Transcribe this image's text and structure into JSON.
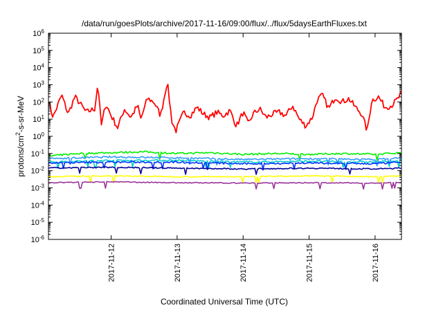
{
  "chart_data": {
    "type": "line",
    "title": "/data/run/goesPlots/archive/2017-11-16/09:00/flux/../flux/5daysEarthFluxes.txt",
    "xlabel": "Coordinated Universal Time (UTC)",
    "ylabel": "protons/cm²-s-sr-MeV",
    "ylabel_parts": {
      "before": "protons/cm",
      "sup": "2",
      "after": "-s-sr-MeV"
    },
    "y_scale": "log",
    "ylim_exp": [
      -6,
      6
    ],
    "y_ticks": [
      {
        "exp": -6,
        "base": "10",
        "sup": "-6"
      },
      {
        "exp": -5,
        "base": "10",
        "sup": "-5"
      },
      {
        "exp": -4,
        "base": "10",
        "sup": "-4"
      },
      {
        "exp": -3,
        "base": "10",
        "sup": "-3"
      },
      {
        "exp": -2,
        "base": "10",
        "sup": "-2"
      },
      {
        "exp": -1,
        "base": "10",
        "sup": "-1"
      },
      {
        "exp": 0,
        "base": "10",
        "sup": "0"
      },
      {
        "exp": 1,
        "base": "10",
        "sup": "1"
      },
      {
        "exp": 2,
        "base": "10",
        "sup": "2"
      },
      {
        "exp": 3,
        "base": "10",
        "sup": "3"
      },
      {
        "exp": 4,
        "base": "10",
        "sup": "4"
      },
      {
        "exp": 5,
        "base": "10",
        "sup": "5"
      },
      {
        "exp": 6,
        "base": "10",
        "sup": "6"
      }
    ],
    "xlim_days": [
      11.05,
      16.4
    ],
    "x_ticks": [
      {
        "day": 12,
        "label": "2017-11-12"
      },
      {
        "day": 13,
        "label": "2017-11-13"
      },
      {
        "day": 14,
        "label": "2017-11-14"
      },
      {
        "day": 15,
        "label": "2017-11-15"
      },
      {
        "day": 16,
        "label": "2017-11-16"
      }
    ],
    "grid": false,
    "legend": "none",
    "series": [
      {
        "color": "#ff0000",
        "baseLog": 1.3,
        "noise": 0.35,
        "points": [
          [
            11.05,
            2.1
          ],
          [
            11.12,
            1.1
          ],
          [
            11.25,
            2.4
          ],
          [
            11.35,
            1.3
          ],
          [
            11.45,
            2.3
          ],
          [
            11.55,
            1.8
          ],
          [
            11.62,
            1.4
          ],
          [
            11.75,
            1.6
          ],
          [
            11.8,
            3.1
          ],
          [
            11.85,
            0.6
          ],
          [
            11.92,
            1.9
          ],
          [
            12.0,
            1.2
          ],
          [
            12.1,
            0.5
          ],
          [
            12.2,
            1.6
          ],
          [
            12.3,
            1.1
          ],
          [
            12.4,
            1.8
          ],
          [
            12.45,
            1.0
          ],
          [
            12.55,
            2.2
          ],
          [
            12.65,
            2.0
          ],
          [
            12.75,
            1.2
          ],
          [
            12.85,
            3.2
          ],
          [
            12.92,
            0.9
          ],
          [
            12.98,
            0.3
          ],
          [
            13.1,
            1.4
          ],
          [
            13.2,
            1.2
          ],
          [
            13.3,
            1.7
          ],
          [
            13.4,
            1.3
          ],
          [
            13.5,
            1.1
          ],
          [
            13.6,
            1.4
          ],
          [
            13.7,
            1.2
          ],
          [
            13.8,
            1.5
          ],
          [
            13.9,
            0.6
          ],
          [
            14.0,
            1.4
          ],
          [
            14.08,
            0.7
          ],
          [
            14.15,
            1.3
          ],
          [
            14.25,
            1.6
          ],
          [
            14.35,
            1.1
          ],
          [
            14.45,
            1.3
          ],
          [
            14.55,
            1.4
          ],
          [
            14.65,
            1.2
          ],
          [
            14.75,
            1.8
          ],
          [
            14.85,
            1.0
          ],
          [
            14.95,
            0.6
          ],
          [
            15.05,
            1.1
          ],
          [
            15.12,
            2.1
          ],
          [
            15.2,
            2.4
          ],
          [
            15.3,
            1.6
          ],
          [
            15.4,
            2.3
          ],
          [
            15.5,
            2.0
          ],
          [
            15.6,
            2.2
          ],
          [
            15.7,
            1.7
          ],
          [
            15.8,
            1.3
          ],
          [
            15.88,
            0.3
          ],
          [
            15.95,
            2.1
          ],
          [
            16.05,
            2.3
          ],
          [
            16.15,
            1.7
          ],
          [
            16.25,
            1.8
          ],
          [
            16.35,
            2.2
          ],
          [
            16.4,
            2.5
          ]
        ]
      },
      {
        "color": "#00ee00",
        "baseLog": -1.0,
        "noise": 0.1,
        "points": [
          [
            11.05,
            -1.15
          ],
          [
            11.5,
            -1.0
          ],
          [
            12.0,
            -0.95
          ],
          [
            12.5,
            -0.9
          ],
          [
            13.0,
            -1.0
          ],
          [
            13.5,
            -0.95
          ],
          [
            14.0,
            -1.05
          ],
          [
            14.5,
            -1.0
          ],
          [
            15.0,
            -1.05
          ],
          [
            15.5,
            -1.0
          ],
          [
            16.0,
            -1.05
          ],
          [
            16.4,
            -0.95
          ]
        ]
      },
      {
        "color": "#00cccc",
        "baseLog": -1.45,
        "noise": 0.1,
        "points": [
          [
            11.05,
            -1.5
          ],
          [
            12.0,
            -1.4
          ],
          [
            13.0,
            -1.4
          ],
          [
            14.0,
            -1.5
          ],
          [
            15.0,
            -1.45
          ],
          [
            16.0,
            -1.5
          ],
          [
            16.4,
            -1.4
          ]
        ]
      },
      {
        "color": "#3399ff",
        "baseLog": -1.3,
        "noise": 0.1,
        "points": [
          [
            11.05,
            -1.3
          ],
          [
            12.0,
            -1.2
          ],
          [
            13.0,
            -1.25
          ],
          [
            14.0,
            -1.35
          ],
          [
            15.0,
            -1.3
          ],
          [
            16.0,
            -1.35
          ],
          [
            16.4,
            -1.25
          ]
        ]
      },
      {
        "color": "#0033ff",
        "baseLog": -1.55,
        "noise": 0.1,
        "points": [
          [
            11.05,
            -1.55
          ],
          [
            12.0,
            -1.5
          ],
          [
            13.0,
            -1.5
          ],
          [
            14.0,
            -1.6
          ],
          [
            15.0,
            -1.55
          ],
          [
            16.0,
            -1.6
          ],
          [
            16.4,
            -1.5
          ]
        ]
      },
      {
        "color": "#000099",
        "baseLog": -1.9,
        "noise": 0.07,
        "points": [
          [
            11.05,
            -1.85
          ],
          [
            12.0,
            -1.8
          ],
          [
            13.0,
            -1.85
          ],
          [
            14.0,
            -1.9
          ],
          [
            15.0,
            -1.85
          ],
          [
            16.0,
            -1.9
          ],
          [
            16.4,
            -1.85
          ]
        ]
      },
      {
        "color": "#ffff00",
        "baseLog": -2.35,
        "noise": 0.05,
        "points": [
          [
            11.05,
            -2.35
          ],
          [
            12.0,
            -2.3
          ],
          [
            13.0,
            -2.35
          ],
          [
            14.0,
            -2.35
          ],
          [
            15.0,
            -2.3
          ],
          [
            16.0,
            -2.35
          ],
          [
            16.4,
            -2.3
          ]
        ]
      },
      {
        "color": "#993399",
        "baseLog": -2.7,
        "noise": 0.05,
        "points": [
          [
            11.05,
            -2.7
          ],
          [
            12.0,
            -2.65
          ],
          [
            13.0,
            -2.7
          ],
          [
            14.0,
            -2.72
          ],
          [
            15.0,
            -2.7
          ],
          [
            16.0,
            -2.72
          ],
          [
            16.4,
            -2.68
          ]
        ]
      }
    ]
  }
}
